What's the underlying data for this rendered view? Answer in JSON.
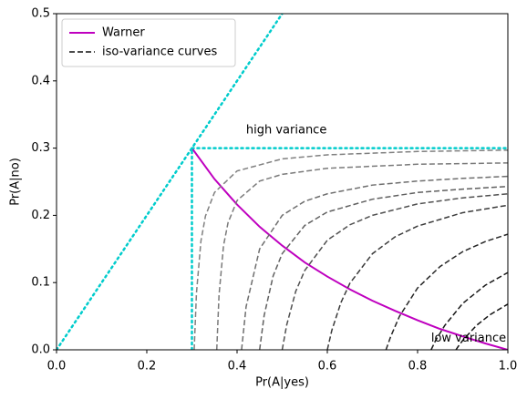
{
  "chart_data": {
    "type": "line",
    "xlabel": "Pr(A|yes)",
    "ylabel": "Pr(A|no)",
    "xlim": [
      0,
      1
    ],
    "ylim": [
      0,
      0.5
    ],
    "xticks": [
      {
        "value": 0,
        "label": "0.0"
      },
      0.2,
      0.4,
      0.6,
      0.8,
      {
        "value": 1,
        "label": "1.0"
      }
    ],
    "yticks": [
      {
        "value": 0,
        "label": "0.0"
      },
      0.1,
      0.2,
      0.3,
      0.4,
      0.5
    ],
    "grid": false,
    "legend": "upper left",
    "series": [
      {
        "name": "Warner",
        "color": "#bf00bf",
        "style": "solid",
        "x": [
          0.3,
          0.35,
          0.4,
          0.45,
          0.5,
          0.55,
          0.6,
          0.65,
          0.7,
          0.75,
          0.8,
          0.85,
          0.9,
          0.95,
          1.0
        ],
        "values": [
          0.3,
          0.254,
          0.216,
          0.183,
          0.155,
          0.13,
          0.109,
          0.09,
          0.073,
          0.058,
          0.044,
          0.031,
          0.02,
          0.0095,
          0
        ]
      },
      {
        "name": "iso-variance curves",
        "color": "#111111",
        "style": "dashed",
        "x": [
          0.885,
          0.89,
          0.9,
          0.93,
          0.96,
          1.0
        ],
        "values": [
          0,
          0.005,
          0.014,
          0.036,
          0.052,
          0.068
        ]
      },
      {
        "color": "#808080",
        "style": "dashed",
        "x": [
          0.305,
          0.31,
          0.32,
          0.33,
          0.35,
          0.4,
          0.5,
          0.6,
          0.8,
          1.0
        ],
        "values": [
          0,
          0.084,
          0.162,
          0.199,
          0.234,
          0.266,
          0.284,
          0.29,
          0.295,
          0.297
        ]
      },
      {
        "color": "#7a7a7a",
        "style": "dashed",
        "x": [
          0.355,
          0.36,
          0.37,
          0.38,
          0.4,
          0.45,
          0.5,
          0.6,
          0.8,
          1.0
        ],
        "values": [
          0,
          0.081,
          0.155,
          0.189,
          0.222,
          0.251,
          0.261,
          0.27,
          0.276,
          0.278
        ]
      },
      {
        "color": "#6e6e6e",
        "style": "dashed",
        "x": [
          0.41,
          0.42,
          0.45,
          0.5,
          0.55,
          0.6,
          0.7,
          0.8,
          0.9,
          1.0
        ],
        "values": [
          0,
          0.064,
          0.15,
          0.2,
          0.221,
          0.232,
          0.245,
          0.251,
          0.255,
          0.258
        ]
      },
      {
        "color": "#606060",
        "style": "dashed",
        "x": [
          0.45,
          0.46,
          0.48,
          0.5,
          0.55,
          0.6,
          0.7,
          0.8,
          0.9,
          1.0
        ],
        "values": [
          0,
          0.051,
          0.11,
          0.143,
          0.185,
          0.205,
          0.224,
          0.234,
          0.239,
          0.243
        ]
      },
      {
        "color": "#505050",
        "style": "dashed",
        "x": [
          0.5,
          0.51,
          0.53,
          0.55,
          0.6,
          0.65,
          0.7,
          0.8,
          0.9,
          1.0
        ],
        "values": [
          0,
          0.037,
          0.087,
          0.118,
          0.163,
          0.186,
          0.2,
          0.217,
          0.226,
          0.232
        ]
      },
      {
        "color": "#3a3a3a",
        "style": "dashed",
        "x": [
          0.6,
          0.61,
          0.63,
          0.65,
          0.7,
          0.75,
          0.8,
          0.9,
          1.0
        ],
        "values": [
          0,
          0.029,
          0.07,
          0.099,
          0.143,
          0.168,
          0.184,
          0.204,
          0.215
        ]
      },
      {
        "color": "#262626",
        "style": "dashed",
        "x": [
          0.73,
          0.74,
          0.76,
          0.8,
          0.85,
          0.9,
          0.95,
          1.0
        ],
        "values": [
          0,
          0.019,
          0.05,
          0.092,
          0.124,
          0.146,
          0.161,
          0.172
        ]
      },
      {
        "color": "#1a1a1a",
        "style": "dashed",
        "x": [
          0.83,
          0.84,
          0.86,
          0.9,
          0.95,
          1.0
        ],
        "values": [
          0,
          0.014,
          0.036,
          0.069,
          0.096,
          0.115
        ]
      },
      {
        "color": "#00cccc",
        "style": "dotted",
        "x": [
          0,
          0.5
        ],
        "values": [
          0,
          0.5
        ]
      },
      {
        "color": "#00cccc",
        "style": "dotted",
        "x": [
          0.3,
          1.0
        ],
        "values": [
          0.3,
          0.3
        ]
      },
      {
        "color": "#00cccc",
        "style": "dotted",
        "x": [
          0.3,
          0.3
        ],
        "values": [
          0,
          0.3
        ]
      }
    ],
    "annotations": [
      {
        "text": "high variance",
        "x": 0.42,
        "y": 0.32
      },
      {
        "text": "low variance",
        "x": 0.83,
        "y": 0.01
      }
    ]
  }
}
